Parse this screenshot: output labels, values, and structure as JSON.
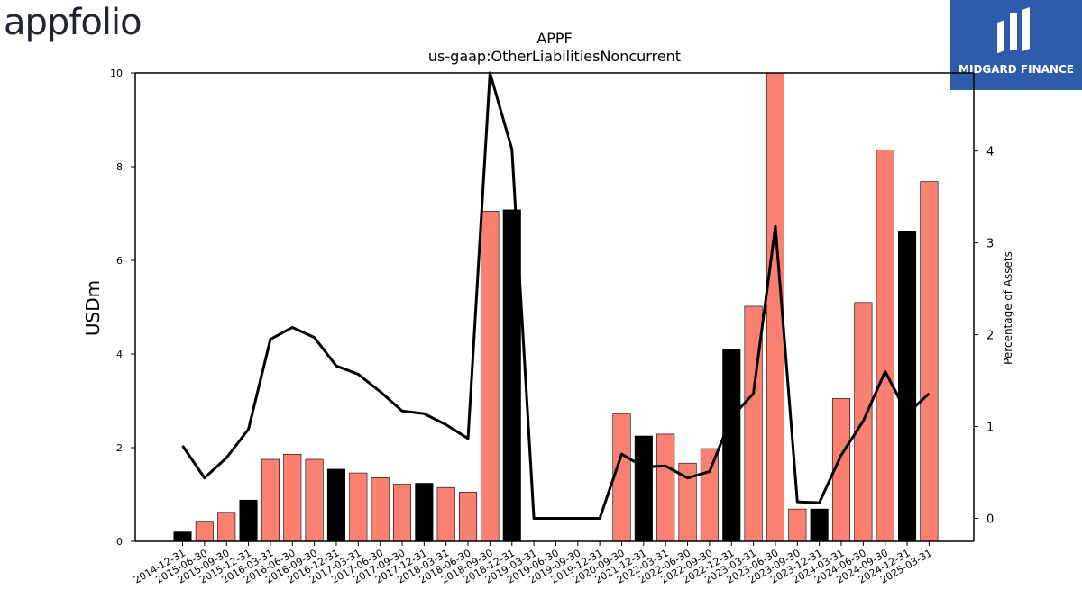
{
  "brand": {
    "left_logo": "appfolio",
    "right_logo": "MIDGARD FINANCE"
  },
  "chart_data": {
    "type": "bar",
    "title": "APPF",
    "subtitle": "us-gaap:OtherLiabilitiesNoncurrent",
    "ylabel": "USDm",
    "y2label": "Percentage of Assets",
    "ylim": [
      0,
      10
    ],
    "y2lim": [
      -0.25,
      4.85
    ],
    "yticks": [
      0,
      2,
      4,
      6,
      8,
      10
    ],
    "y2ticks": [
      0,
      1,
      2,
      3,
      4
    ],
    "colors": {
      "quarter": "#fa8072",
      "year_end": "#000000",
      "line": "#000000"
    },
    "categories": [
      "2014-12-31",
      "2015-06-30",
      "2015-09-30",
      "2015-12-31",
      "2016-03-31",
      "2016-06-30",
      "2016-09-30",
      "2016-12-31",
      "2017-03-31",
      "2017-06-30",
      "2017-09-30",
      "2017-12-31",
      "2018-03-31",
      "2018-06-30",
      "2018-09-30",
      "2018-12-31",
      "2019-03-31",
      "2019-06-30",
      "2019-09-30",
      "2019-12-31",
      "2020-09-30",
      "2021-12-31",
      "2022-03-31",
      "2022-06-30",
      "2022-09-30",
      "2022-12-31",
      "2023-03-31",
      "2023-06-30",
      "2023-09-30",
      "2023-12-31",
      "2024-03-31",
      "2024-06-30",
      "2024-09-30",
      "2024-12-31",
      "2025-03-31"
    ],
    "series": [
      {
        "values": [
          0.2,
          0.43,
          0.62,
          0.88,
          1.75,
          1.86,
          1.75,
          1.54,
          1.46,
          1.36,
          1.22,
          1.24,
          1.15,
          1.05,
          7.05,
          7.08,
          0,
          0,
          0,
          0,
          2.72,
          2.25,
          2.29,
          1.67,
          1.98,
          4.09,
          5.02,
          10.1,
          0.69,
          0.69,
          3.05,
          5.1,
          8.36,
          6.62,
          7.68
        ]
      },
      {
        "type": "line",
        "axis": "y2",
        "values": [
          0.79,
          0.44,
          0.66,
          0.97,
          1.95,
          2.08,
          1.97,
          1.66,
          1.57,
          1.38,
          1.17,
          1.14,
          1.02,
          0.87,
          4.92,
          4.02,
          0.0,
          0.0,
          0.0,
          0.0,
          0.7,
          0.56,
          0.57,
          0.44,
          0.51,
          1.1,
          1.36,
          3.18,
          0.18,
          0.17,
          0.69,
          1.06,
          1.6,
          1.14,
          1.36
        ]
      }
    ]
  }
}
